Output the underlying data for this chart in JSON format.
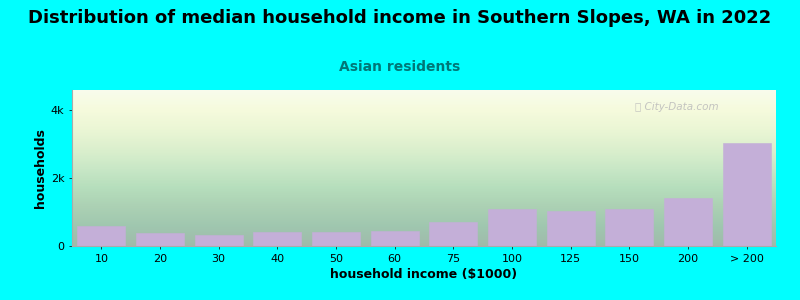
{
  "title": "Distribution of median household income in Southern Slopes, WA in 2022",
  "subtitle": "Asian residents",
  "xlabel": "household income ($1000)",
  "ylabel": "households",
  "background_color": "#00FFFF",
  "bar_color": "#c4afd8",
  "bar_edge_color": "#c4afd8",
  "categories": [
    "10",
    "20",
    "30",
    "40",
    "50",
    "60",
    "75",
    "100",
    "125",
    "150",
    "200",
    "> 200"
  ],
  "values": [
    580,
    380,
    320,
    420,
    420,
    430,
    720,
    1100,
    1020,
    1100,
    1420,
    3050
  ],
  "ylim": [
    0,
    4600
  ],
  "ytick_labels": [
    "0",
    "2k",
    "4k"
  ],
  "ytick_vals": [
    0,
    2000,
    4000
  ],
  "title_fontsize": 13,
  "subtitle_fontsize": 10,
  "axis_label_fontsize": 9,
  "tick_fontsize": 8,
  "watermark_text": "ⓘ City-Data.com"
}
